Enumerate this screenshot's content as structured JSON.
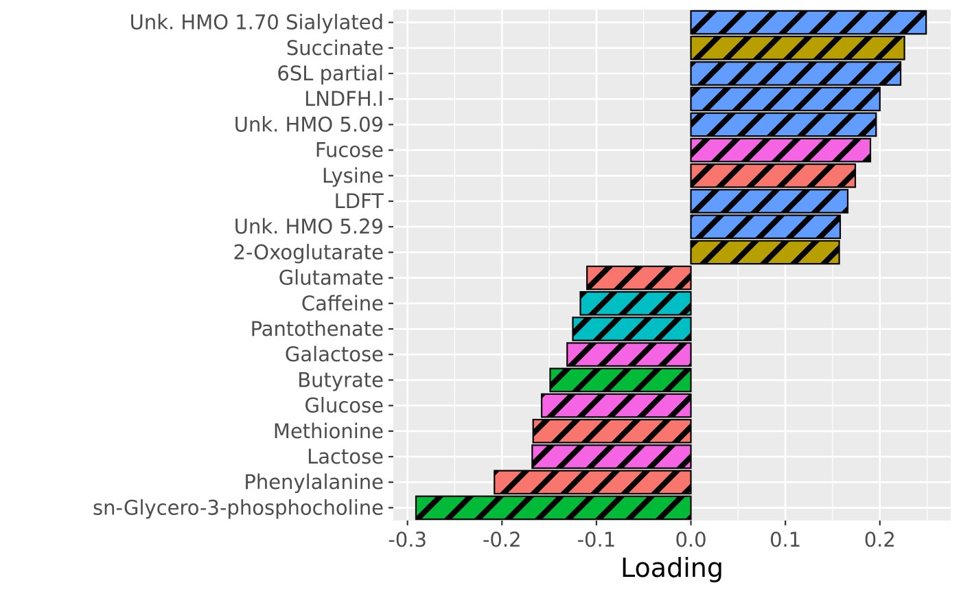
{
  "chart_data": {
    "type": "bar",
    "orientation": "horizontal",
    "title": "",
    "xlabel": "Loading",
    "ylabel": "",
    "xlim": [
      -0.315,
      0.275
    ],
    "x_ticks": [
      -0.3,
      -0.2,
      -0.1,
      0.0,
      0.1,
      0.2
    ],
    "x_tick_labels": [
      "-0.3",
      "-0.2",
      "-0.1",
      "0.0",
      "0.1",
      "0.2"
    ],
    "grid": true,
    "legend": "none",
    "bar_pattern": "diagonal-stripes",
    "categories": [
      "Unk. HMO 1.70 Sialylated",
      "Succinate",
      "6SL partial",
      "LNDFH.I",
      "Unk. HMO 5.09",
      "Fucose",
      "Lysine",
      "LDFT",
      "Unk. HMO 5.29",
      "2-Oxoglutarate",
      "Glutamate",
      "Caffeine",
      "Pantothenate",
      "Galactose",
      "Butyrate",
      "Glucose",
      "Methionine",
      "Lactose",
      "Phenylalanine",
      "sn-Glycero-3-phosphocholine"
    ],
    "values": [
      0.249,
      0.226,
      0.222,
      0.2,
      0.196,
      0.19,
      0.174,
      0.166,
      0.158,
      0.157,
      -0.11,
      -0.117,
      -0.125,
      -0.131,
      -0.149,
      -0.158,
      -0.167,
      -0.168,
      -0.208,
      -0.291
    ],
    "colors": [
      "#619CFF",
      "#B79F00",
      "#619CFF",
      "#619CFF",
      "#619CFF",
      "#F564E3",
      "#F8766D",
      "#619CFF",
      "#619CFF",
      "#B79F00",
      "#F8766D",
      "#00BFC4",
      "#00BFC4",
      "#F564E3",
      "#00BA38",
      "#F564E3",
      "#F8766D",
      "#F564E3",
      "#F8766D",
      "#00BA38"
    ]
  }
}
